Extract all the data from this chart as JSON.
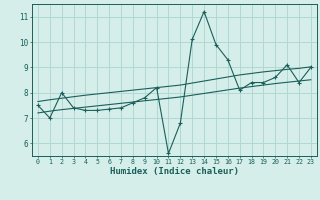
{
  "title": "",
  "xlabel": "Humidex (Indice chaleur)",
  "bg_color": "#d5eeea",
  "grid_color": "#b0d8d4",
  "line_color": "#1a5f5a",
  "xlim": [
    -0.5,
    23.5
  ],
  "ylim": [
    5.5,
    11.5
  ],
  "xticks": [
    0,
    1,
    2,
    3,
    4,
    5,
    6,
    7,
    8,
    9,
    10,
    11,
    12,
    13,
    14,
    15,
    16,
    17,
    18,
    19,
    20,
    21,
    22,
    23
  ],
  "yticks": [
    6,
    7,
    8,
    9,
    10,
    11
  ],
  "x_data": [
    0,
    1,
    2,
    3,
    4,
    5,
    6,
    7,
    8,
    9,
    10,
    11,
    12,
    13,
    14,
    15,
    16,
    17,
    18,
    19,
    20,
    21,
    22,
    23
  ],
  "y_main": [
    7.5,
    7.0,
    8.0,
    7.4,
    7.3,
    7.3,
    7.35,
    7.4,
    7.6,
    7.8,
    8.2,
    5.6,
    6.8,
    10.1,
    11.2,
    9.9,
    9.3,
    8.1,
    8.4,
    8.4,
    8.6,
    9.1,
    8.4,
    9.0
  ],
  "y_upper": [
    7.65,
    7.72,
    7.78,
    7.84,
    7.9,
    7.95,
    8.0,
    8.05,
    8.1,
    8.15,
    8.2,
    8.25,
    8.3,
    8.38,
    8.46,
    8.54,
    8.62,
    8.7,
    8.76,
    8.82,
    8.87,
    8.92,
    8.96,
    9.02
  ],
  "y_lower": [
    7.2,
    7.27,
    7.33,
    7.38,
    7.43,
    7.48,
    7.53,
    7.58,
    7.63,
    7.68,
    7.73,
    7.78,
    7.83,
    7.9,
    7.97,
    8.04,
    8.11,
    8.18,
    8.24,
    8.3,
    8.36,
    8.41,
    8.46,
    8.51
  ]
}
